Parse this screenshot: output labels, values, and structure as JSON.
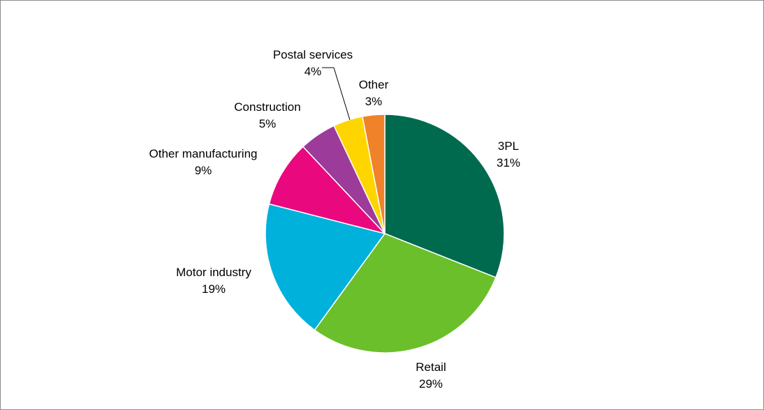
{
  "chart_data": {
    "type": "pie",
    "title": "",
    "start_angle_deg": 0,
    "direction": "clockwise",
    "slices": [
      {
        "label": "3PL",
        "value": 31,
        "value_label": "31%",
        "color": "#006a4e"
      },
      {
        "label": "Retail",
        "value": 29,
        "value_label": "29%",
        "color": "#6abf2a"
      },
      {
        "label": "Motor industry",
        "value": 19,
        "value_label": "19%",
        "color": "#00b1dc"
      },
      {
        "label": "Other manufacturing",
        "value": 9,
        "value_label": "9%",
        "color": "#e9087e"
      },
      {
        "label": "Construction",
        "value": 5,
        "value_label": "5%",
        "color": "#9c3b9a"
      },
      {
        "label": "Postal services",
        "value": 4,
        "value_label": "4%",
        "color": "#ffd500"
      },
      {
        "label": "Other",
        "value": 3,
        "value_label": "3%",
        "color": "#f0822a"
      }
    ]
  }
}
